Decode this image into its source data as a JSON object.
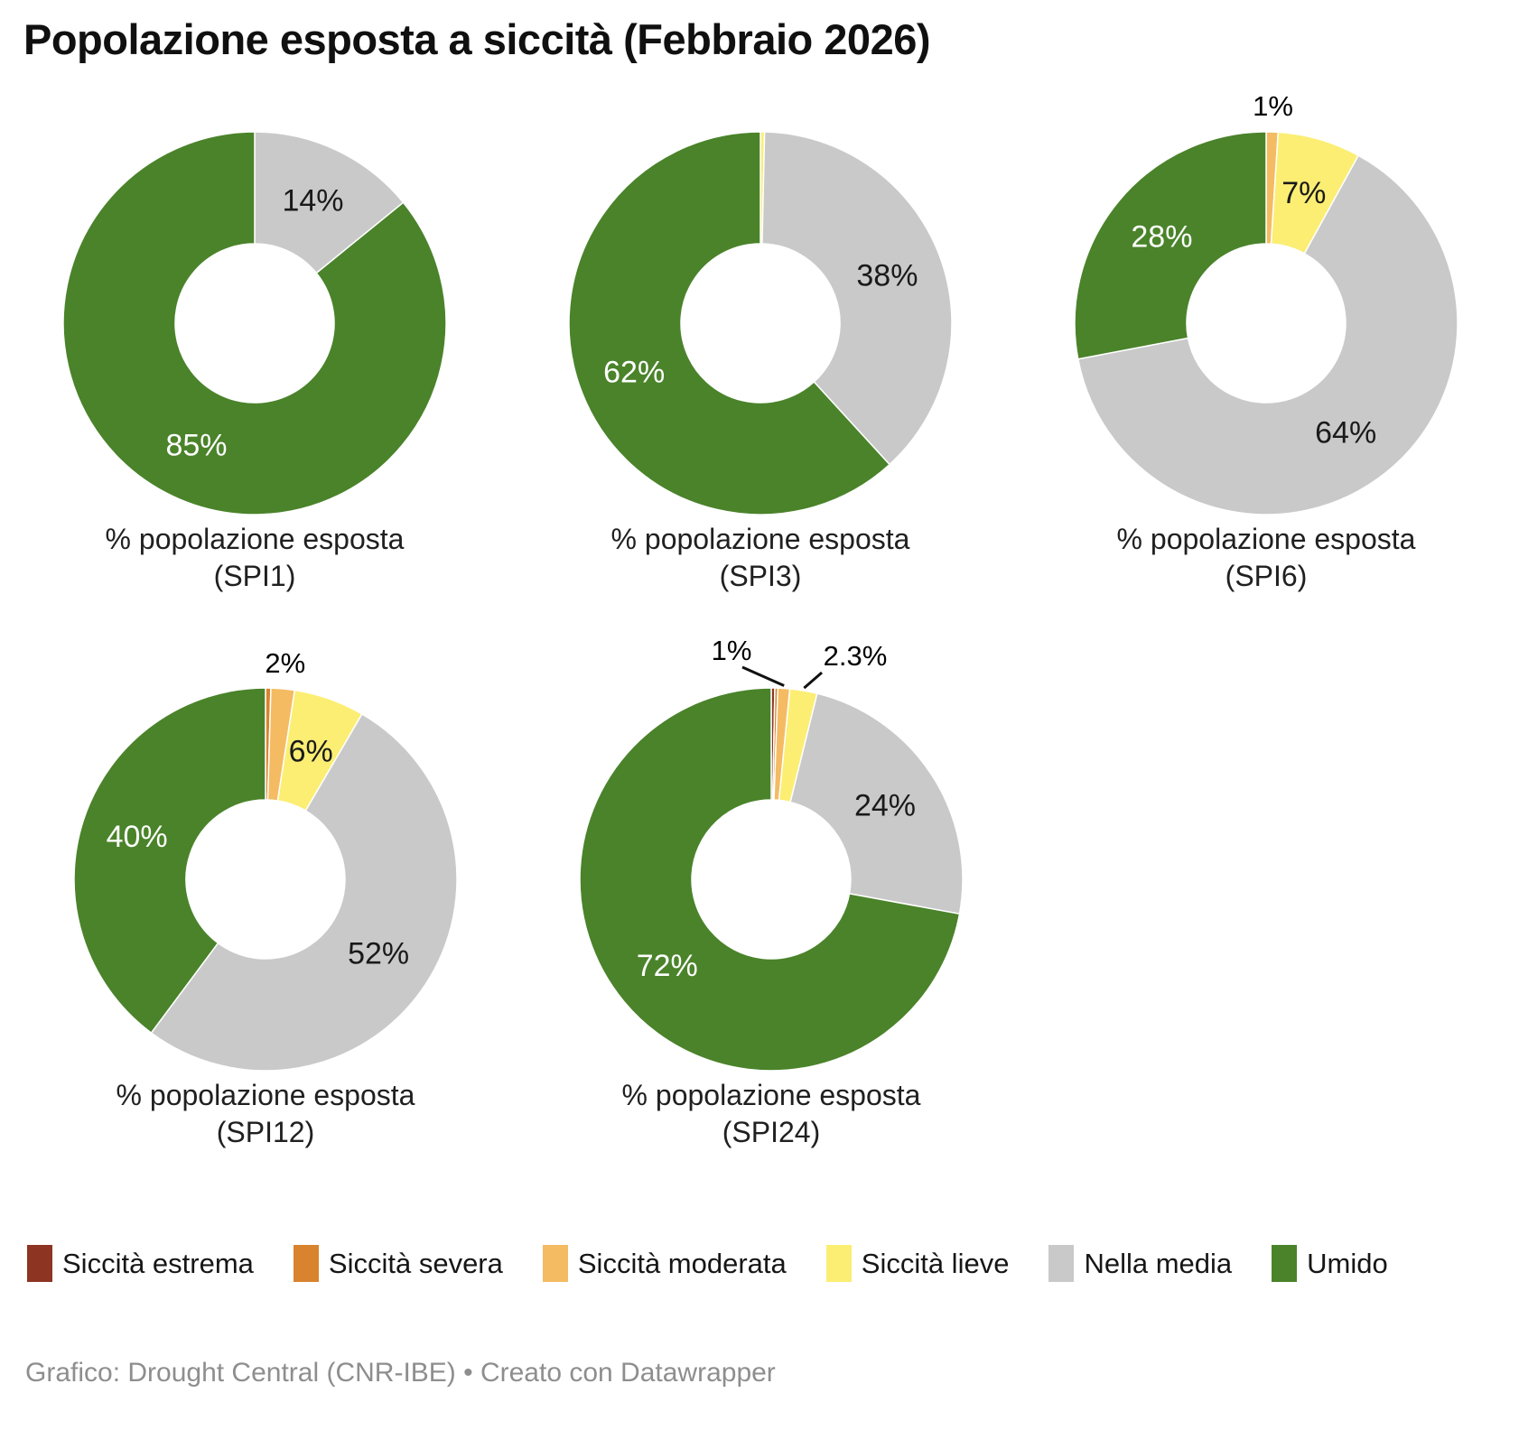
{
  "title": "Popolazione esposta a siccità (Febbraio 2026)",
  "footer": "Grafico: Drought Central (CNR-IBE) • Creato con Datawrapper",
  "legend": [
    {
      "key": "estrema",
      "label": "Siccità estrema",
      "color": "#8e3423"
    },
    {
      "key": "severa",
      "label": "Siccità severa",
      "color": "#d9832f"
    },
    {
      "key": "moderata",
      "label": "Siccità moderata",
      "color": "#f4bb63"
    },
    {
      "key": "lieve",
      "label": "Siccità lieve",
      "color": "#fbee73"
    },
    {
      "key": "media",
      "label": "Nella media",
      "color": "#c9c9c9"
    },
    {
      "key": "umido",
      "label": "Umido",
      "color": "#4a832a"
    }
  ],
  "chart_data": [
    {
      "type": "pie",
      "donut": true,
      "id": "SPI1",
      "name": "% popolazione esposta (SPI1)",
      "caption_line1": "% popolazione esposta",
      "caption_line2": "(SPI1)",
      "units": "%",
      "slices": [
        {
          "key": "media",
          "category": "Nella media",
          "value": 14,
          "label": "14%",
          "placement": "inside"
        },
        {
          "key": "umido",
          "category": "Umido",
          "value": 85,
          "label": "85%",
          "placement": "inside"
        }
      ]
    },
    {
      "type": "pie",
      "donut": true,
      "id": "SPI3",
      "name": "% popolazione esposta (SPI3)",
      "caption_line1": "% popolazione esposta",
      "caption_line2": "(SPI3)",
      "units": "%",
      "slices": [
        {
          "key": "lieve",
          "category": "Siccità lieve",
          "value": 0.35,
          "label": null,
          "placement": "none"
        },
        {
          "key": "media",
          "category": "Nella media",
          "value": 38,
          "label": "38%",
          "placement": "inside"
        },
        {
          "key": "umido",
          "category": "Umido",
          "value": 62,
          "label": "62%",
          "placement": "inside"
        }
      ]
    },
    {
      "type": "pie",
      "donut": true,
      "id": "SPI6",
      "name": "% popolazione esposta (SPI6)",
      "caption_line1": "% popolazione esposta",
      "caption_line2": "(SPI6)",
      "units": "%",
      "slices": [
        {
          "key": "moderata",
          "category": "Siccità moderata",
          "value": 1,
          "label": "1%",
          "placement": "outside"
        },
        {
          "key": "lieve",
          "category": "Siccità lieve",
          "value": 7,
          "label": "7%",
          "placement": "inside"
        },
        {
          "key": "media",
          "category": "Nella media",
          "value": 64,
          "label": "64%",
          "placement": "inside"
        },
        {
          "key": "umido",
          "category": "Umido",
          "value": 28,
          "label": "28%",
          "placement": "inside"
        }
      ]
    },
    {
      "type": "pie",
      "donut": true,
      "id": "SPI12",
      "name": "% popolazione esposta (SPI12)",
      "caption_line1": "% popolazione esposta",
      "caption_line2": "(SPI12)",
      "units": "%",
      "slices": [
        {
          "key": "severa",
          "category": "Siccità severa",
          "value": 0.45,
          "label": null,
          "placement": "none"
        },
        {
          "key": "moderata",
          "category": "Siccità moderata",
          "value": 2,
          "label": "2%",
          "placement": "outside"
        },
        {
          "key": "lieve",
          "category": "Siccità lieve",
          "value": 6,
          "label": "6%",
          "placement": "inside"
        },
        {
          "key": "media",
          "category": "Nella media",
          "value": 52,
          "label": "52%",
          "placement": "inside"
        },
        {
          "key": "umido",
          "category": "Umido",
          "value": 40,
          "label": "40%",
          "placement": "inside"
        }
      ]
    },
    {
      "type": "pie",
      "donut": true,
      "id": "SPI24",
      "name": "% popolazione esposta (SPI24)",
      "caption_line1": "% popolazione esposta",
      "caption_line2": "(SPI24)",
      "units": "%",
      "slices": [
        {
          "key": "estrema",
          "category": "Siccità estrema",
          "value": 0.3,
          "label": null,
          "placement": "none"
        },
        {
          "key": "severa",
          "category": "Siccità severa",
          "value": 0.25,
          "label": null,
          "placement": "none"
        },
        {
          "key": "moderata",
          "category": "Siccità moderata",
          "value": 1,
          "label": "1%",
          "placement": "outside-leader-left"
        },
        {
          "key": "lieve",
          "category": "Siccità lieve",
          "value": 2.3,
          "label": "2.3%",
          "placement": "outside-leader-right"
        },
        {
          "key": "media",
          "category": "Nella media",
          "value": 24,
          "label": "24%",
          "placement": "inside"
        },
        {
          "key": "umido",
          "category": "Umido",
          "value": 72,
          "label": "72%",
          "placement": "inside"
        }
      ]
    }
  ]
}
